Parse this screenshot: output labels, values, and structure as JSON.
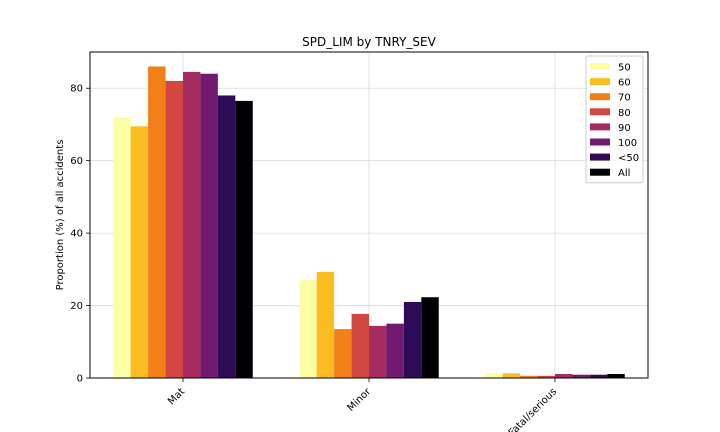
{
  "chart_data": {
    "type": "bar",
    "title": "SPD_LIM by TNRY_SEV",
    "xlabel": "",
    "ylabel": "Proportion (%) of all accidents",
    "ylim": [
      0,
      90
    ],
    "yticks": [
      0,
      20,
      40,
      60,
      80
    ],
    "grid": true,
    "legend_position": "top-right",
    "categories": [
      "Mat",
      "Minor",
      "Fatal/serious"
    ],
    "series": [
      {
        "name": "50",
        "color": "#fcfea4",
        "values": [
          72.0,
          27.0,
          1.3
        ]
      },
      {
        "name": "60",
        "color": "#fbbd22",
        "values": [
          69.5,
          29.3,
          1.3
        ]
      },
      {
        "name": "70",
        "color": "#f27f17",
        "values": [
          86.0,
          13.5,
          0.6
        ]
      },
      {
        "name": "80",
        "color": "#d34743",
        "values": [
          82.0,
          17.7,
          0.6
        ]
      },
      {
        "name": "90",
        "color": "#a52c60",
        "values": [
          84.5,
          14.4,
          1.1
        ]
      },
      {
        "name": "100",
        "color": "#6f1a6e",
        "values": [
          84.0,
          15.0,
          0.9
        ]
      },
      {
        "name": "<50",
        "color": "#2e0b57",
        "values": [
          78.0,
          21.0,
          0.9
        ]
      },
      {
        "name": "All",
        "color": "#000004",
        "values": [
          76.5,
          22.3,
          1.1
        ]
      }
    ]
  }
}
